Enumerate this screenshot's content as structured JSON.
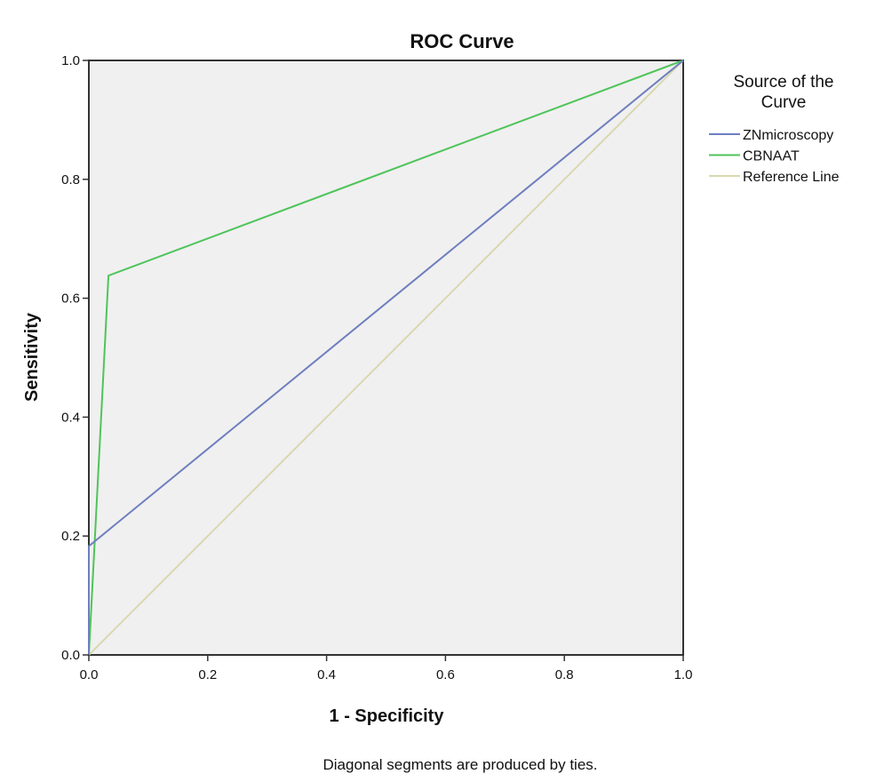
{
  "chart_data": {
    "type": "line",
    "title": "ROC Curve",
    "xlabel": "1 - Specificity",
    "ylabel": "Sensitivity",
    "xlim": [
      0,
      1
    ],
    "ylim": [
      0,
      1
    ],
    "xticks": [
      "0.0",
      "0.2",
      "0.4",
      "0.6",
      "0.8",
      "1.0"
    ],
    "yticks": [
      "0.0",
      "0.2",
      "0.4",
      "0.6",
      "0.8",
      "1.0"
    ],
    "grid": false,
    "legend_title_lines": [
      "Source of the",
      "Curve"
    ],
    "legend_placement": "right",
    "footnote": "Diagonal segments are produced by ties.",
    "plot_background": "#f0f0f0",
    "series": [
      {
        "name": "ZNmicroscopy",
        "color": "#6e7fbf",
        "x": [
          0,
          0,
          1
        ],
        "y": [
          0,
          0.183,
          1
        ]
      },
      {
        "name": "CBNAAT",
        "color": "#4fc45a",
        "x": [
          0,
          0.033,
          1
        ],
        "y": [
          0,
          0.638,
          1
        ]
      },
      {
        "name": "Reference Line",
        "color": "#d8d8b0",
        "x": [
          0,
          1
        ],
        "y": [
          0,
          1
        ]
      }
    ]
  }
}
